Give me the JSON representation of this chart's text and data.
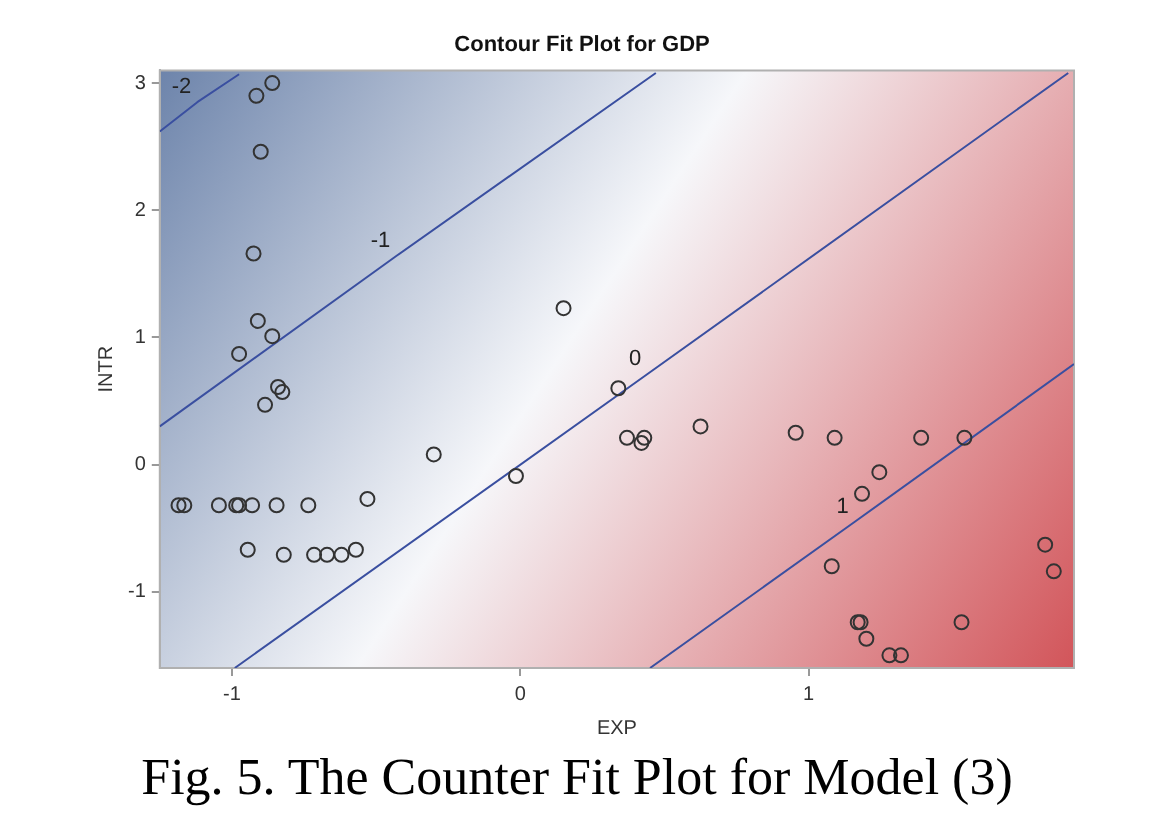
{
  "chart_data": {
    "type": "scatter",
    "title": "Contour Fit Plot for GDP",
    "xlabel": "EXP",
    "ylabel": "INTR",
    "annotations": [
      "Fig. 5. The Counter Fit Plot for Model (3)"
    ],
    "xlim": [
      -1.25,
      1.92
    ],
    "ylim": [
      -1.6,
      3.1
    ],
    "xticks": [
      -1,
      0,
      1
    ],
    "yticks": [
      -1,
      0,
      1,
      2,
      3
    ],
    "grid": false,
    "legend": false,
    "marker": "circle",
    "series": [
      {
        "type": "scatter",
        "color": "#333333",
        "x": [
          -0.86,
          -0.915,
          -0.9,
          -0.925,
          -0.91,
          -0.86,
          -0.975,
          0.15,
          -0.84,
          -0.825,
          -0.885,
          -0.3,
          -0.015,
          -1.185,
          -1.165,
          -1.045,
          -0.985,
          -0.975,
          -0.93,
          -0.845,
          -0.735,
          -0.53,
          -0.945,
          -0.82,
          -0.715,
          -0.67,
          -0.62,
          -0.57,
          0.34,
          0.37,
          0.43,
          0.42,
          0.625,
          0.955,
          1.09,
          1.39,
          1.54,
          1.245,
          1.185,
          1.08,
          1.17,
          1.18,
          1.53,
          1.2,
          1.28,
          1.32,
          1.82,
          1.85
        ],
        "values": [
          3.0,
          2.9,
          2.46,
          1.66,
          1.13,
          1.01,
          0.87,
          1.23,
          0.61,
          0.57,
          0.47,
          0.08,
          -0.09,
          -0.32,
          -0.32,
          -0.32,
          -0.32,
          -0.32,
          -0.32,
          -0.32,
          -0.32,
          -0.27,
          -0.67,
          -0.71,
          -0.71,
          -0.71,
          -0.71,
          -0.67,
          0.6,
          0.21,
          0.21,
          0.17,
          0.3,
          0.25,
          0.21,
          0.21,
          0.21,
          -0.06,
          -0.23,
          -0.8,
          -1.24,
          -1.24,
          -1.24,
          -1.37,
          -1.5,
          -1.5,
          -0.63,
          -0.84
        ]
      },
      {
        "type": "line",
        "name": "-2",
        "color": "#3a4fa0",
        "marker": "none",
        "x": [
          -1.25,
          -1.12,
          -0.975
        ],
        "values": [
          2.62,
          2.85,
          3.07
        ]
      },
      {
        "type": "line",
        "name": "-1",
        "color": "#3a4fa0",
        "marker": "none",
        "x": [
          -1.25,
          -0.43,
          0.47
        ],
        "values": [
          0.3,
          1.64,
          3.08
        ]
      },
      {
        "type": "line",
        "name": "0",
        "color": "#3a4fa0",
        "marker": "none",
        "x": [
          -0.99,
          0.44,
          1.9
        ],
        "values": [
          -1.6,
          0.71,
          3.08
        ]
      },
      {
        "type": "line",
        "name": "1",
        "color": "#3a4fa0",
        "marker": "none",
        "x": [
          0.45,
          1.16,
          1.92
        ],
        "values": [
          -1.6,
          -0.45,
          0.79
        ]
      }
    ]
  }
}
